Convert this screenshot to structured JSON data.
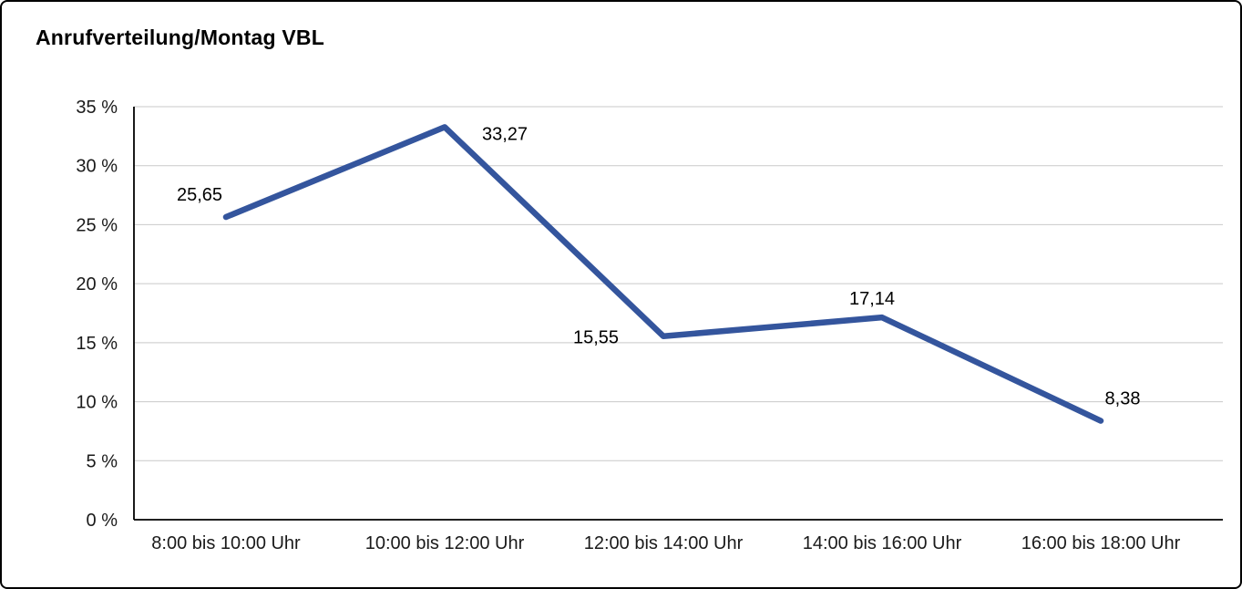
{
  "title": "Anrufverteilung/Montag VBL",
  "chart_data": {
    "type": "line",
    "title": "Anrufverteilung/Montag VBL",
    "categories": [
      "8:00 bis 10:00 Uhr",
      "10:00 bis 12:00 Uhr",
      "12:00 bis 14:00 Uhr",
      "14:00 bis 16:00 Uhr",
      "16:00 bis 18:00 Uhr"
    ],
    "values": [
      25.65,
      33.27,
      15.55,
      17.14,
      8.38
    ],
    "value_labels": [
      "25,65",
      "33,27",
      "15,55",
      "17,14",
      "8,38"
    ],
    "xlabel": "",
    "ylabel": "",
    "ylim": [
      0,
      35
    ],
    "ytick_step": 5,
    "ytick_labels": [
      "0 %",
      "5 %",
      "10 %",
      "15 %",
      "20 %",
      "25 %",
      "30 %",
      "35 %"
    ],
    "grid": true,
    "legend": "none",
    "line_color": "#34559D",
    "grid_color": "#c9c9c9",
    "axis_color": "#000000",
    "text_color": "#1a1a1a"
  }
}
